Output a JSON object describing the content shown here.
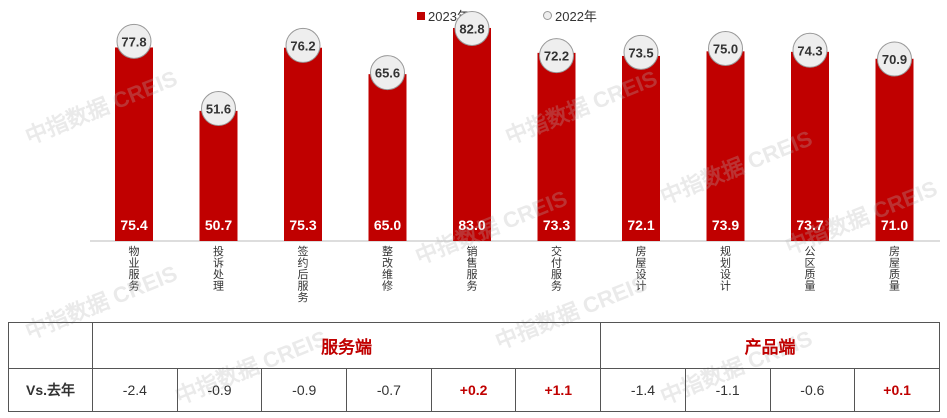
{
  "legend": {
    "current": "2023年",
    "previous": "2022年"
  },
  "watermark_text": "中指数据 CREIS",
  "colors": {
    "bar": "#c00000",
    "positive": "#c00000",
    "text": "#333333"
  },
  "chart_data": {
    "type": "bar",
    "categories": [
      "物业服务",
      "投诉处理",
      "签约后服务",
      "整改维修",
      "销售服务",
      "交付服务",
      "房屋设计",
      "规划设计",
      "公区质量",
      "房屋质量"
    ],
    "series": [
      {
        "name": "2023年",
        "values": [
          75.4,
          50.7,
          75.3,
          65.0,
          83.0,
          73.3,
          72.1,
          73.9,
          73.7,
          71.0
        ]
      },
      {
        "name": "2022年",
        "values": [
          77.8,
          51.6,
          76.2,
          65.6,
          82.8,
          72.2,
          73.5,
          75.0,
          74.3,
          70.9
        ]
      }
    ],
    "value_labels_2023": [
      "75.4",
      "50.7",
      "75.3",
      "65.0",
      "83.0",
      "73.3",
      "72.1",
      "73.9",
      "73.7",
      "71.0"
    ],
    "value_labels_2022": [
      "77.8",
      "51.6",
      "76.2",
      "65.6",
      "82.8",
      "72.2",
      "73.5",
      "75.0",
      "74.3",
      "70.9"
    ],
    "ylim": [
      0,
      90
    ],
    "grid": false,
    "legend_position": "top-center"
  },
  "table": {
    "group_left": "服务端",
    "group_right": "产品端",
    "row_label": "Vs.去年",
    "diffs": [
      "-2.4",
      "-0.9",
      "-0.9",
      "-0.7",
      "+0.2",
      "+1.1",
      "-1.4",
      "-1.1",
      "-0.6",
      "+0.1"
    ]
  }
}
